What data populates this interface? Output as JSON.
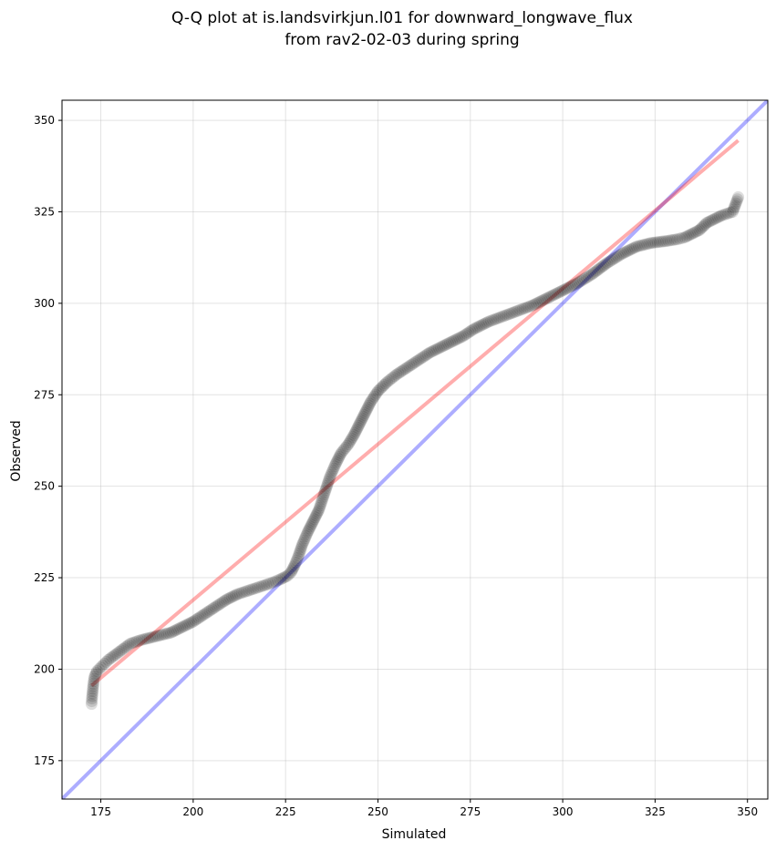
{
  "chart_data": {
    "type": "scatter",
    "title_lines": [
      "Q-Q plot at is.landsvirkjun.l01 for downward_longwave_flux",
      "from rav2-02-03 during spring"
    ],
    "xlabel": "Simulated",
    "ylabel": "Observed",
    "xlim": [
      164.5,
      355.5
    ],
    "ylim": [
      164.5,
      355.5
    ],
    "xticks": [
      175,
      200,
      225,
      250,
      275,
      300,
      325,
      350
    ],
    "yticks": [
      175,
      200,
      225,
      250,
      275,
      300,
      325,
      350
    ],
    "grid": true,
    "colors": {
      "points": "#000000",
      "identity_line": "#0000ff",
      "fit_line": "#ff0000"
    },
    "identity_line": {
      "from": [
        164.5,
        164.5
      ],
      "to": [
        355.5,
        355.5
      ]
    },
    "fit_line": {
      "from": [
        172.5,
        195.5
      ],
      "to": [
        347.5,
        344.5
      ]
    },
    "quantile_curve": [
      [
        172.5,
        190.5
      ],
      [
        172.6,
        192
      ],
      [
        172.8,
        194
      ],
      [
        173,
        196
      ],
      [
        173.3,
        198
      ],
      [
        174,
        199.5
      ],
      [
        175.5,
        201
      ],
      [
        177,
        202.5
      ],
      [
        179,
        204
      ],
      [
        181,
        205.5
      ],
      [
        183,
        207
      ],
      [
        186,
        208
      ],
      [
        190,
        209
      ],
      [
        194,
        210
      ],
      [
        197,
        211.5
      ],
      [
        200,
        213
      ],
      [
        203,
        215
      ],
      [
        206,
        217
      ],
      [
        209,
        219
      ],
      [
        212,
        220.5
      ],
      [
        215,
        221.5
      ],
      [
        218,
        222.5
      ],
      [
        221,
        223.5
      ],
      [
        223.5,
        224.5
      ],
      [
        225.5,
        225.5
      ],
      [
        226.5,
        226.5
      ],
      [
        227.5,
        228.5
      ],
      [
        228.5,
        231
      ],
      [
        229.5,
        234
      ],
      [
        231,
        237.5
      ],
      [
        232.5,
        240.5
      ],
      [
        234,
        243.5
      ],
      [
        235,
        246.5
      ],
      [
        236,
        249.5
      ],
      [
        237,
        252.5
      ],
      [
        238.5,
        256
      ],
      [
        240,
        259
      ],
      [
        242,
        261.5
      ],
      [
        243.5,
        264
      ],
      [
        245,
        267
      ],
      [
        246.5,
        270
      ],
      [
        248,
        273
      ],
      [
        250,
        276
      ],
      [
        252.5,
        278.5
      ],
      [
        255,
        280.5
      ],
      [
        258,
        282.5
      ],
      [
        261,
        284.5
      ],
      [
        264,
        286.5
      ],
      [
        267,
        288
      ],
      [
        270,
        289.5
      ],
      [
        273,
        291
      ],
      [
        276,
        293
      ],
      [
        280,
        295
      ],
      [
        284,
        296.5
      ],
      [
        288,
        298
      ],
      [
        292,
        299.5
      ],
      [
        296,
        301.5
      ],
      [
        300,
        303.5
      ],
      [
        304,
        305.5
      ],
      [
        308,
        308
      ],
      [
        312,
        311
      ],
      [
        316,
        313.5
      ],
      [
        320,
        315.5
      ],
      [
        324,
        316.5
      ],
      [
        328,
        317
      ],
      [
        331,
        317.5
      ],
      [
        333,
        318
      ],
      [
        335,
        319
      ],
      [
        337,
        320
      ],
      [
        339,
        322
      ],
      [
        341,
        323
      ],
      [
        343,
        324
      ],
      [
        346,
        325
      ],
      [
        347.5,
        329
      ]
    ]
  }
}
